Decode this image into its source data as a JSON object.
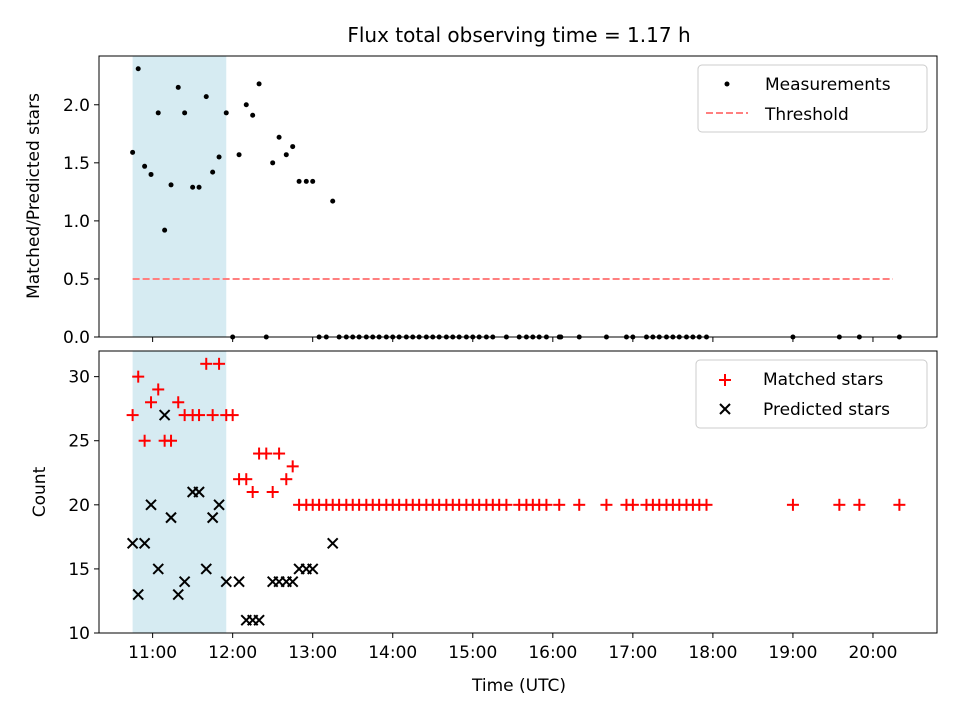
{
  "title": "Flux total observing time = 1.17 h",
  "colors": {
    "measurement": "#000000",
    "threshold": "#ff7f7f",
    "matched": "#ff0000",
    "predicted": "#000000",
    "span_fill": "#add8e6"
  },
  "chart_data": [
    {
      "type": "scatter",
      "panel": "top",
      "ylabel": "Matched/Predicted stars",
      "ylim": [
        0,
        2.42
      ],
      "yticks": [
        0.0,
        0.5,
        1.0,
        1.5,
        2.0
      ],
      "ytick_labels": [
        "0.0",
        "0.5",
        "1.0",
        "1.5",
        "2.0"
      ],
      "legend": {
        "position": "top-right",
        "entries": [
          "Measurements",
          "Threshold"
        ]
      },
      "highlight_span_hours": [
        10.75,
        11.92
      ],
      "threshold": {
        "name": "Threshold",
        "value": 0.5,
        "x_range": [
          10.75,
          20.25
        ]
      },
      "series": [
        {
          "name": "Measurements",
          "points": [
            [
              10.75,
              1.59
            ],
            [
              10.82,
              2.31
            ],
            [
              10.9,
              1.47
            ],
            [
              10.98,
              1.4
            ],
            [
              11.07,
              1.93
            ],
            [
              11.15,
              0.92
            ],
            [
              11.23,
              1.31
            ],
            [
              11.32,
              2.15
            ],
            [
              11.4,
              1.93
            ],
            [
              11.5,
              1.29
            ],
            [
              11.58,
              1.29
            ],
            [
              11.67,
              2.07
            ],
            [
              11.75,
              1.42
            ],
            [
              11.83,
              1.55
            ],
            [
              11.92,
              1.93
            ],
            [
              12.08,
              1.57
            ],
            [
              12.17,
              2.0
            ],
            [
              12.25,
              1.91
            ],
            [
              12.33,
              2.18
            ],
            [
              12.5,
              1.5
            ],
            [
              12.58,
              1.72
            ],
            [
              12.67,
              1.57
            ],
            [
              12.75,
              1.64
            ],
            [
              12.83,
              1.34
            ],
            [
              12.92,
              1.34
            ],
            [
              13.0,
              1.34
            ],
            [
              13.25,
              1.17
            ],
            [
              12.0,
              0
            ],
            [
              12.42,
              0
            ],
            [
              13.08,
              0
            ],
            [
              13.17,
              0
            ],
            [
              13.33,
              0
            ],
            [
              13.42,
              0
            ],
            [
              13.5,
              0
            ],
            [
              13.58,
              0
            ],
            [
              13.67,
              0
            ],
            [
              13.75,
              0
            ],
            [
              13.83,
              0
            ],
            [
              13.92,
              0
            ],
            [
              14.0,
              0
            ],
            [
              14.08,
              0
            ],
            [
              14.17,
              0
            ],
            [
              14.25,
              0
            ],
            [
              14.33,
              0
            ],
            [
              14.42,
              0
            ],
            [
              14.5,
              0
            ],
            [
              14.58,
              0
            ],
            [
              14.67,
              0
            ],
            [
              14.75,
              0
            ],
            [
              14.83,
              0
            ],
            [
              14.92,
              0
            ],
            [
              15.0,
              0
            ],
            [
              15.08,
              0
            ],
            [
              15.17,
              0
            ],
            [
              15.25,
              0
            ],
            [
              15.42,
              0
            ],
            [
              15.58,
              0
            ],
            [
              15.67,
              0
            ],
            [
              15.75,
              0
            ],
            [
              15.83,
              0
            ],
            [
              15.92,
              0
            ],
            [
              16.08,
              0
            ],
            [
              16.1,
              0
            ],
            [
              16.33,
              0
            ],
            [
              16.67,
              0
            ],
            [
              16.92,
              0
            ],
            [
              17.0,
              0
            ],
            [
              17.17,
              0
            ],
            [
              17.25,
              0
            ],
            [
              17.33,
              0
            ],
            [
              17.42,
              0
            ],
            [
              17.5,
              0
            ],
            [
              17.58,
              0
            ],
            [
              17.67,
              0
            ],
            [
              17.75,
              0
            ],
            [
              17.83,
              0
            ],
            [
              17.92,
              0
            ],
            [
              19.0,
              0
            ],
            [
              19.58,
              0
            ],
            [
              19.83,
              0
            ],
            [
              20.33,
              0
            ]
          ]
        }
      ]
    },
    {
      "type": "scatter",
      "panel": "bottom",
      "xlabel": "Time (UTC)",
      "ylabel": "Count",
      "ylim": [
        10,
        32
      ],
      "xlim": [
        10.33,
        20.8
      ],
      "yticks": [
        10,
        15,
        20,
        25,
        30
      ],
      "ytick_labels": [
        "10",
        "15",
        "20",
        "25",
        "30"
      ],
      "xticks": [
        11,
        12,
        13,
        14,
        15,
        16,
        17,
        18,
        19,
        20
      ],
      "xtick_labels": [
        "11:00",
        "12:00",
        "13:00",
        "14:00",
        "15:00",
        "16:00",
        "17:00",
        "18:00",
        "19:00",
        "20:00"
      ],
      "legend": {
        "position": "top-right",
        "entries": [
          "Matched stars",
          "Predicted stars"
        ]
      },
      "highlight_span_hours": [
        10.75,
        11.92
      ],
      "series": [
        {
          "name": "Matched stars",
          "points": [
            [
              10.75,
              27
            ],
            [
              10.82,
              30
            ],
            [
              10.9,
              25
            ],
            [
              10.98,
              28
            ],
            [
              11.07,
              29
            ],
            [
              11.15,
              25
            ],
            [
              11.23,
              25
            ],
            [
              11.32,
              28
            ],
            [
              11.4,
              27
            ],
            [
              11.5,
              27
            ],
            [
              11.58,
              27
            ],
            [
              11.67,
              31
            ],
            [
              11.75,
              27
            ],
            [
              11.83,
              31
            ],
            [
              11.92,
              27
            ],
            [
              12.0,
              27
            ],
            [
              12.08,
              22
            ],
            [
              12.17,
              22
            ],
            [
              12.25,
              21
            ],
            [
              12.33,
              24
            ],
            [
              12.42,
              24
            ],
            [
              12.5,
              21
            ],
            [
              12.58,
              24
            ],
            [
              12.67,
              22
            ],
            [
              12.75,
              23
            ],
            [
              12.83,
              20
            ],
            [
              12.92,
              20
            ],
            [
              13.0,
              20
            ],
            [
              13.08,
              20
            ],
            [
              13.17,
              20
            ],
            [
              13.25,
              20
            ],
            [
              13.33,
              20
            ],
            [
              13.42,
              20
            ],
            [
              13.5,
              20
            ],
            [
              13.58,
              20
            ],
            [
              13.67,
              20
            ],
            [
              13.75,
              20
            ],
            [
              13.83,
              20
            ],
            [
              13.92,
              20
            ],
            [
              14.0,
              20
            ],
            [
              14.08,
              20
            ],
            [
              14.17,
              20
            ],
            [
              14.25,
              20
            ],
            [
              14.33,
              20
            ],
            [
              14.42,
              20
            ],
            [
              14.5,
              20
            ],
            [
              14.58,
              20
            ],
            [
              14.67,
              20
            ],
            [
              14.75,
              20
            ],
            [
              14.83,
              20
            ],
            [
              14.92,
              20
            ],
            [
              15.0,
              20
            ],
            [
              15.08,
              20
            ],
            [
              15.17,
              20
            ],
            [
              15.25,
              20
            ],
            [
              15.33,
              20
            ],
            [
              15.42,
              20
            ],
            [
              15.58,
              20
            ],
            [
              15.67,
              20
            ],
            [
              15.75,
              20
            ],
            [
              15.83,
              20
            ],
            [
              15.92,
              20
            ],
            [
              16.08,
              20
            ],
            [
              16.33,
              20
            ],
            [
              16.67,
              20
            ],
            [
              16.92,
              20
            ],
            [
              17.0,
              20
            ],
            [
              17.17,
              20
            ],
            [
              17.25,
              20
            ],
            [
              17.33,
              20
            ],
            [
              17.42,
              20
            ],
            [
              17.5,
              20
            ],
            [
              17.58,
              20
            ],
            [
              17.67,
              20
            ],
            [
              17.75,
              20
            ],
            [
              17.83,
              20
            ],
            [
              17.92,
              20
            ],
            [
              19.0,
              20
            ],
            [
              19.58,
              20
            ],
            [
              19.83,
              20
            ],
            [
              20.33,
              20
            ]
          ]
        },
        {
          "name": "Predicted stars",
          "points": [
            [
              10.75,
              17
            ],
            [
              10.82,
              13
            ],
            [
              10.9,
              17
            ],
            [
              10.98,
              20
            ],
            [
              11.07,
              15
            ],
            [
              11.15,
              27
            ],
            [
              11.23,
              19
            ],
            [
              11.32,
              13
            ],
            [
              11.4,
              14
            ],
            [
              11.5,
              21
            ],
            [
              11.58,
              21
            ],
            [
              11.67,
              15
            ],
            [
              11.75,
              19
            ],
            [
              11.83,
              20
            ],
            [
              11.92,
              14
            ],
            [
              12.08,
              14
            ],
            [
              12.17,
              11
            ],
            [
              12.25,
              11
            ],
            [
              12.33,
              11
            ],
            [
              12.5,
              14
            ],
            [
              12.58,
              14
            ],
            [
              12.67,
              14
            ],
            [
              12.75,
              14
            ],
            [
              12.83,
              15
            ],
            [
              12.92,
              15
            ],
            [
              13.0,
              15
            ],
            [
              13.25,
              17
            ]
          ]
        }
      ]
    }
  ]
}
